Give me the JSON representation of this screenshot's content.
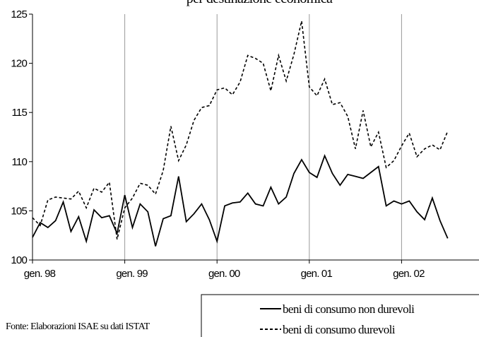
{
  "chart_data": {
    "type": "line",
    "title": "per destinazione economica",
    "categories": [
      "gen. 98",
      null,
      null,
      null,
      null,
      null,
      null,
      null,
      null,
      null,
      null,
      null,
      "gen. 99",
      null,
      null,
      null,
      null,
      null,
      null,
      null,
      null,
      null,
      null,
      null,
      "gen. 00",
      null,
      null,
      null,
      null,
      null,
      null,
      null,
      null,
      null,
      null,
      null,
      "gen. 01",
      null,
      null,
      null,
      null,
      null,
      null,
      null,
      null,
      null,
      null,
      null,
      "gen. 02",
      null,
      null,
      null,
      null,
      null,
      null
    ],
    "series": [
      {
        "name": "beni di consumo non durevoli",
        "color": "#000000",
        "dash": "solid",
        "values": [
          102.3,
          103.8,
          103.3,
          104.0,
          105.9,
          102.9,
          104.4,
          101.9,
          105.1,
          104.3,
          104.5,
          102.7,
          106.6,
          103.3,
          105.7,
          104.9,
          101.4,
          104.2,
          104.5,
          108.5,
          103.9,
          104.7,
          105.7,
          104.1,
          101.9,
          105.5,
          105.8,
          105.9,
          106.8,
          105.7,
          105.5,
          107.4,
          105.7,
          106.4,
          108.8,
          110.2,
          108.9,
          108.4,
          110.6,
          108.8,
          107.6,
          108.7,
          108.5,
          108.3,
          108.9,
          109.5,
          105.5,
          106.0,
          105.7,
          106.0,
          104.9,
          104.1,
          106.3,
          104.0,
          102.2
        ]
      },
      {
        "name": "beni di consumo durevoli",
        "color": "#000000",
        "dash": "dashed",
        "values": [
          104.3,
          103.5,
          106.1,
          106.4,
          106.3,
          106.2,
          107.0,
          105.3,
          107.3,
          106.9,
          107.9,
          102.1,
          105.3,
          106.3,
          107.8,
          107.6,
          106.7,
          109.1,
          113.6,
          110.1,
          111.7,
          114.2,
          115.5,
          115.7,
          117.3,
          117.5,
          116.8,
          118.1,
          120.8,
          120.5,
          120.0,
          117.2,
          120.8,
          118.2,
          120.9,
          124.3,
          117.6,
          116.7,
          118.4,
          115.8,
          116.0,
          114.6,
          111.3,
          115.2,
          111.5,
          113.0,
          109.4,
          110.1,
          111.6,
          112.9,
          110.5,
          111.3,
          111.7,
          111.2,
          113.1
        ]
      }
    ],
    "ylim": [
      100,
      125
    ],
    "yticks": [
      100,
      105,
      110,
      115,
      120,
      125
    ],
    "grid": "x",
    "legend": "bottom-right",
    "source": "Fonte: Elaborazioni ISAE su dati ISTAT"
  }
}
